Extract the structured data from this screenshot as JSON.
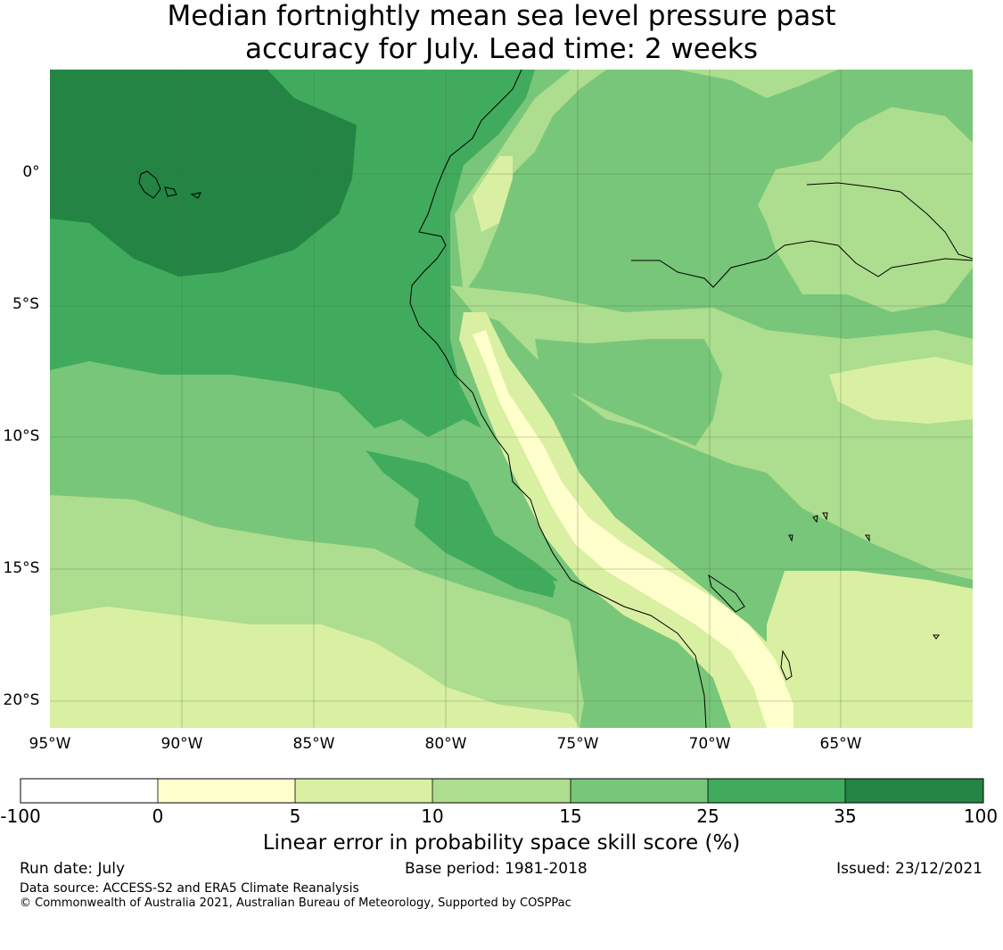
{
  "title_line1": "Median fortnightly mean sea level pressure past",
  "title_line2": "accuracy for July. Lead time: 2 weeks",
  "map": {
    "lat_labels": [
      "0°",
      "5°S",
      "10°S",
      "15°S",
      "20°S"
    ],
    "lon_labels": [
      "95°W",
      "90°W",
      "85°W",
      "80°W",
      "75°W",
      "70°W",
      "65°W"
    ],
    "lon_range": [
      -95,
      -60
    ],
    "lat_range": [
      -21,
      4
    ]
  },
  "colorbar": {
    "title": "Linear error in probability space skill score (%)",
    "ticks": [
      "-100",
      "0",
      "5",
      "10",
      "15",
      "25",
      "35",
      "100"
    ],
    "colors": [
      "#ffffff",
      "#ffffcc",
      "#d9f0a3",
      "#addd8e",
      "#78c679",
      "#41ab5d",
      "#238443"
    ]
  },
  "footer": {
    "run_date": "Run date: July",
    "base_period": "Base period: 1981-2018",
    "issued": "Issued: 23/12/2021",
    "data_source": "Data source: ACCESS-S2 and ERA5 Climate Reanalysis",
    "copyright": "© Commonwealth of Australia 2021, Australian Bureau of Meteorology, Supported by COSPPac"
  }
}
